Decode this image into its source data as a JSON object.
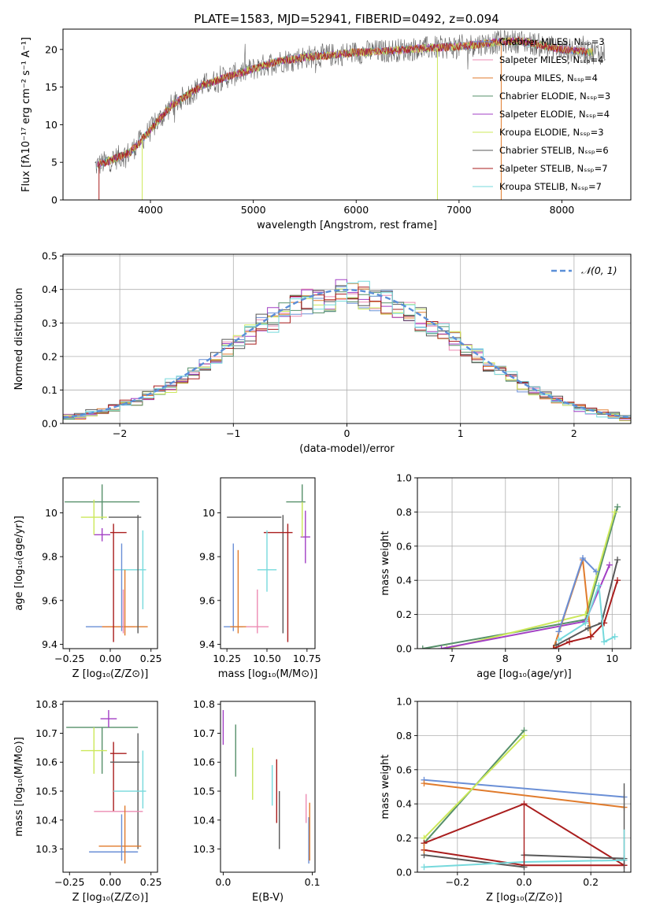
{
  "figure": {
    "title": "PLATE=1583, MJD=52941, FIBERID=0492, z=0.094"
  },
  "series_colors": [
    "#6a8fd6",
    "#ec8bb3",
    "#e07b2c",
    "#56906a",
    "#a23fc4",
    "#cce85a",
    "#585858",
    "#a91d1d",
    "#76d9dc"
  ],
  "chart_data": [
    {
      "id": "spectrum",
      "type": "line",
      "title": "PLATE=1583, MJD=52941, FIBERID=0492, z=0.094",
      "xlabel": "wavelength [Angstrom, rest frame]",
      "ylabel": "Flux [fλ10⁻¹⁷ erg cm⁻² s⁻¹ A⁻¹]",
      "xlim": [
        3150,
        8670
      ],
      "ylim": [
        0,
        22.7
      ],
      "xticks": [
        4000,
        5000,
        6000,
        7000,
        8000
      ],
      "yticks": [
        0,
        5,
        10,
        15,
        20
      ],
      "grid": false,
      "legend_position": "top-right",
      "legend": [
        "Chabrier MILES, Nₛₛₚ=3",
        "Salpeter MILES, Nₛₛₚ=4",
        "Kroupa MILES, Nₛₛₚ=4",
        "Chabrier ELODIE, Nₛₛₚ=3",
        "Salpeter ELODIE, Nₛₛₚ=4",
        "Kroupa ELODIE, Nₛₛₚ=3",
        "Chabrier STELIB, Nₛₛₚ=6",
        "Salpeter STELIB, Nₛₛₚ=7",
        "Kroupa STELIB, Nₛₛₚ=7"
      ],
      "legend_color_index": [
        0,
        1,
        2,
        3,
        4,
        5,
        6,
        7,
        8
      ],
      "continuum": {
        "x": [
          3460,
          3600,
          3800,
          4000,
          4200,
          4500,
          4800,
          5000,
          5200,
          5500,
          5800,
          6000,
          6300,
          6600,
          7000,
          7400,
          7600,
          8000,
          8400
        ],
        "y": [
          4.5,
          5.2,
          6.3,
          9.3,
          12.5,
          15.2,
          16.6,
          17.4,
          18.3,
          19.0,
          19.3,
          19.6,
          19.8,
          20.1,
          20.4,
          21.0,
          21.1,
          20.0,
          19.5
        ]
      },
      "dips": [
        {
          "x": 3500,
          "to": 0
        },
        {
          "x": 3920,
          "to": 0
        },
        {
          "x": 6790,
          "to": 0
        },
        {
          "x": 7410,
          "to": 0
        }
      ]
    },
    {
      "id": "residuals",
      "type": "line",
      "xlabel": "(data-model)/error",
      "ylabel": "Normed distribution",
      "xlim": [
        -2.5,
        2.5
      ],
      "ylim": [
        0,
        0.505
      ],
      "xticks": [
        -2,
        -1,
        0,
        1,
        2
      ],
      "xtick_labels": [
        "−2",
        "−1",
        "0",
        "1",
        "2"
      ],
      "yticks": [
        0,
        0.1,
        0.2,
        0.3,
        0.4,
        0.5
      ],
      "grid": true,
      "legend_position": "top-right",
      "legend": [
        "𝒩(0, 1)"
      ],
      "reference": {
        "type": "gaussian",
        "mean": 0,
        "sigma": 1
      },
      "histogram_bins": 50,
      "histogram_count": 9
    },
    {
      "id": "age-vs-z",
      "type": "scatter",
      "xlabel": "Z [log₁₀(Z/Z⊙)]",
      "ylabel": "age  [log₁₀(age/yr)]",
      "xlim": [
        -0.29,
        0.29
      ],
      "ylim": [
        9.38,
        10.16
      ],
      "xticks": [
        -0.25,
        0,
        0.25
      ],
      "xtick_labels": [
        "−0.25",
        "0.00",
        "0.25"
      ],
      "yticks": [
        9.4,
        9.6,
        9.8,
        10.0
      ],
      "grid": false,
      "points": [
        {
          "c": 0,
          "x": 0.0,
          "y": 9.48,
          "xerr": 0.15,
          "yerr": 0.0
        },
        {
          "c": 1,
          "x": 0.05,
          "y": 9.48,
          "xerr": 0.1,
          "yerr": 0.0
        },
        {
          "c": 2,
          "x": 0.09,
          "y": 9.48,
          "xerr": 0.14,
          "yerr": 0.0
        },
        {
          "c": 3,
          "x": -0.05,
          "y": 10.05,
          "xerr": 0.23,
          "yerr": 0.08
        },
        {
          "c": 4,
          "x": -0.05,
          "y": 9.9,
          "xerr": 0.05,
          "yerr": 0.03
        },
        {
          "c": 5,
          "x": -0.1,
          "y": 9.98,
          "xerr": 0.08,
          "yerr": 0.08
        },
        {
          "c": 6,
          "x": 0.09,
          "y": 9.98,
          "xerr": 0.1,
          "yerr": 0.0
        },
        {
          "c": 7,
          "x": 0.05,
          "y": 9.91,
          "xerr": 0.05,
          "yerr": 0.0
        },
        {
          "c": 8,
          "x": 0.12,
          "y": 9.74,
          "xerr": 0.1,
          "yerr": 0.0
        },
        {
          "c": 0,
          "x": 0.07,
          "y": 9.66,
          "xerr": 0.0,
          "yerr": 0.2
        },
        {
          "c": 7,
          "x": 0.02,
          "y": 9.68,
          "xerr": 0.0,
          "yerr": 0.27
        },
        {
          "c": 6,
          "x": 0.17,
          "y": 9.72,
          "xerr": 0.0,
          "yerr": 0.27
        },
        {
          "c": 8,
          "x": 0.2,
          "y": 9.74,
          "xerr": 0.0,
          "yerr": 0.18
        },
        {
          "c": 1,
          "x": 0.08,
          "y": 9.55,
          "xerr": 0.0,
          "yerr": 0.1
        },
        {
          "c": 2,
          "x": 0.09,
          "y": 9.59,
          "xerr": 0.0,
          "yerr": 0.15
        }
      ]
    },
    {
      "id": "age-vs-mass",
      "type": "scatter",
      "xlabel": "mass [log₁₀(M/M⊙)]",
      "xlim": [
        10.21,
        10.8
      ],
      "ylim": [
        9.38,
        10.16
      ],
      "xticks": [
        10.25,
        10.5,
        10.75
      ],
      "xtick_labels": [
        "10.25",
        "10.50",
        "10.75"
      ],
      "yticks": [
        9.4,
        9.6,
        9.8,
        10.0
      ],
      "grid": false,
      "points": [
        {
          "c": 0,
          "x": 10.29,
          "y": 9.48,
          "xerr": 0.06,
          "yerr": 0.0
        },
        {
          "c": 0,
          "x": 10.29,
          "y": 9.66,
          "xerr": 0.0,
          "yerr": 0.2
        },
        {
          "c": 2,
          "x": 10.32,
          "y": 9.48,
          "xerr": 0.05,
          "yerr": 0.0
        },
        {
          "c": 2,
          "x": 10.32,
          "y": 9.64,
          "xerr": 0.0,
          "yerr": 0.19
        },
        {
          "c": 1,
          "x": 10.44,
          "y": 9.48,
          "xerr": 0.07,
          "yerr": 0.0
        },
        {
          "c": 1,
          "x": 10.44,
          "y": 9.55,
          "xerr": 0.0,
          "yerr": 0.1
        },
        {
          "c": 6,
          "x": 10.42,
          "y": 9.98,
          "xerr": 0.17,
          "yerr": 0.0
        },
        {
          "c": 6,
          "x": 10.6,
          "y": 9.72,
          "xerr": 0.0,
          "yerr": 0.27
        },
        {
          "c": 7,
          "x": 10.57,
          "y": 9.91,
          "xerr": 0.09,
          "yerr": 0.0
        },
        {
          "c": 7,
          "x": 10.63,
          "y": 9.68,
          "xerr": 0.0,
          "yerr": 0.27
        },
        {
          "c": 8,
          "x": 10.5,
          "y": 9.74,
          "xerr": 0.06,
          "yerr": 0.0
        },
        {
          "c": 8,
          "x": 10.5,
          "y": 9.78,
          "xerr": 0.0,
          "yerr": 0.14
        },
        {
          "c": 3,
          "x": 10.68,
          "y": 10.05,
          "xerr": 0.06,
          "yerr": 0.0
        },
        {
          "c": 3,
          "x": 10.72,
          "y": 10.05,
          "xerr": 0.0,
          "yerr": 0.08
        },
        {
          "c": 4,
          "x": 10.74,
          "y": 9.89,
          "xerr": 0.03,
          "yerr": 0.12
        },
        {
          "c": 5,
          "x": 10.72,
          "y": 9.97,
          "xerr": 0.0,
          "yerr": 0.08
        }
      ]
    },
    {
      "id": "weight-vs-age",
      "type": "line",
      "xlabel": "age  [log₁₀(age/yr)]",
      "ylabel": "mass weight",
      "xlim": [
        6.35,
        10.35
      ],
      "ylim": [
        0,
        1.0
      ],
      "xticks": [
        7,
        8,
        9,
        10
      ],
      "yticks": [
        0,
        0.2,
        0.4,
        0.6,
        0.8,
        1.0
      ],
      "grid": true,
      "series": [
        {
          "c": 3,
          "x": [
            6.45,
            9.5,
            10.1
          ],
          "y": [
            0.0,
            0.17,
            0.83
          ]
        },
        {
          "c": 5,
          "x": [
            6.9,
            9.5,
            10.05
          ],
          "y": [
            0.0,
            0.2,
            0.8
          ]
        },
        {
          "c": 4,
          "x": [
            6.8,
            9.5,
            9.95
          ],
          "y": [
            0.0,
            0.16,
            0.49
          ]
        },
        {
          "c": 2,
          "x": [
            8.9,
            9.45,
            9.6
          ],
          "y": [
            0.0,
            0.52,
            0.07
          ]
        },
        {
          "c": 0,
          "x": [
            9.0,
            9.45,
            9.7
          ],
          "y": [
            0.1,
            0.53,
            0.45
          ]
        },
        {
          "c": 6,
          "x": [
            8.95,
            9.55,
            9.8,
            10.1
          ],
          "y": [
            0.02,
            0.12,
            0.15,
            0.52
          ]
        },
        {
          "c": 7,
          "x": [
            8.9,
            9.2,
            9.6,
            9.85,
            10.1
          ],
          "y": [
            0.0,
            0.04,
            0.07,
            0.15,
            0.4
          ]
        },
        {
          "c": 8,
          "x": [
            9.0,
            9.5,
            9.75,
            9.85,
            10.05
          ],
          "y": [
            0.05,
            0.15,
            0.37,
            0.04,
            0.07
          ]
        }
      ]
    },
    {
      "id": "mass-vs-z",
      "type": "scatter",
      "xlabel": "Z [log₁₀(Z/Z⊙)]",
      "ylabel": "mass [log₁₀(M/M⊙)]",
      "xlim": [
        -0.29,
        0.29
      ],
      "ylim": [
        10.22,
        10.81
      ],
      "xticks": [
        -0.25,
        0,
        0.25
      ],
      "xtick_labels": [
        "−0.25",
        "0.00",
        "0.25"
      ],
      "yticks": [
        10.3,
        10.4,
        10.5,
        10.6,
        10.7,
        10.8
      ],
      "grid": false,
      "points": [
        {
          "c": 3,
          "x": -0.05,
          "y": 10.72,
          "xerr": 0.22,
          "yerr": 0.0
        },
        {
          "c": 3,
          "x": -0.05,
          "y": 10.64,
          "xerr": 0.0,
          "yerr": 0.08
        },
        {
          "c": 4,
          "x": -0.01,
          "y": 10.75,
          "xerr": 0.05,
          "yerr": 0.03
        },
        {
          "c": 5,
          "x": -0.1,
          "y": 10.64,
          "xerr": 0.08,
          "yerr": 0.08
        },
        {
          "c": 7,
          "x": 0.05,
          "y": 10.63,
          "xerr": 0.05,
          "yerr": 0.0
        },
        {
          "c": 7,
          "x": 0.02,
          "y": 10.55,
          "xerr": 0.0,
          "yerr": 0.12
        },
        {
          "c": 6,
          "x": 0.09,
          "y": 10.6,
          "xerr": 0.09,
          "yerr": 0.0
        },
        {
          "c": 6,
          "x": 0.17,
          "y": 10.5,
          "xerr": 0.0,
          "yerr": 0.2
        },
        {
          "c": 8,
          "x": 0.12,
          "y": 10.5,
          "xerr": 0.1,
          "yerr": 0.0
        },
        {
          "c": 8,
          "x": 0.2,
          "y": 10.54,
          "xerr": 0.0,
          "yerr": 0.1
        },
        {
          "c": 1,
          "x": 0.05,
          "y": 10.43,
          "xerr": 0.15,
          "yerr": 0.0
        },
        {
          "c": 2,
          "x": 0.06,
          "y": 10.31,
          "xerr": 0.13,
          "yerr": 0.0
        },
        {
          "c": 0,
          "x": 0.02,
          "y": 10.29,
          "xerr": 0.15,
          "yerr": 0.0
        },
        {
          "c": 0,
          "x": 0.07,
          "y": 10.34,
          "xerr": 0.0,
          "yerr": 0.08
        },
        {
          "c": 2,
          "x": 0.09,
          "y": 10.35,
          "xerr": 0.0,
          "yerr": 0.1
        }
      ]
    },
    {
      "id": "mass-vs-ebv",
      "type": "scatter",
      "xlabel": "E(B-V)",
      "xlim": [
        -0.003,
        0.103
      ],
      "ylim": [
        10.22,
        10.81
      ],
      "xticks": [
        0,
        0.1
      ],
      "xtick_labels": [
        "0.0",
        "0.1"
      ],
      "yticks": [
        10.3,
        10.4,
        10.5,
        10.6,
        10.7,
        10.8
      ],
      "grid": false,
      "points": [
        {
          "c": 4,
          "x": 0.0,
          "y": 10.72,
          "xerr": 0.0,
          "yerr": 0.06
        },
        {
          "c": 3,
          "x": 0.014,
          "y": 10.64,
          "xerr": 0.0,
          "yerr": 0.09
        },
        {
          "c": 5,
          "x": 0.033,
          "y": 10.56,
          "xerr": 0.0,
          "yerr": 0.09
        },
        {
          "c": 8,
          "x": 0.055,
          "y": 10.52,
          "xerr": 0.0,
          "yerr": 0.07
        },
        {
          "c": 7,
          "x": 0.06,
          "y": 10.5,
          "xerr": 0.0,
          "yerr": 0.11
        },
        {
          "c": 6,
          "x": 0.063,
          "y": 10.4,
          "xerr": 0.0,
          "yerr": 0.1
        },
        {
          "c": 1,
          "x": 0.093,
          "y": 10.44,
          "xerr": 0.0,
          "yerr": 0.05
        },
        {
          "c": 0,
          "x": 0.096,
          "y": 10.33,
          "xerr": 0.0,
          "yerr": 0.08
        },
        {
          "c": 2,
          "x": 0.097,
          "y": 10.36,
          "xerr": 0.0,
          "yerr": 0.1
        }
      ]
    },
    {
      "id": "weight-vs-z",
      "type": "line",
      "xlabel": "Z [log₁₀(Z/Z⊙)]",
      "ylabel": "mass weight",
      "xlim": [
        -0.32,
        0.32
      ],
      "ylim": [
        0,
        1.0
      ],
      "xticks": [
        -0.2,
        0,
        0.2
      ],
      "xtick_labels": [
        "−0.2",
        "0.0",
        "0.2"
      ],
      "yticks": [
        0,
        0.2,
        0.4,
        0.6,
        0.8,
        1.0
      ],
      "grid": true,
      "series": [
        {
          "c": 0,
          "x": [
            -0.3,
            0.3
          ],
          "y": [
            0.54,
            0.44
          ]
        },
        {
          "c": 2,
          "x": [
            -0.3,
            0.3
          ],
          "y": [
            0.52,
            0.38
          ]
        },
        {
          "c": 3,
          "x": [
            -0.3,
            0.0
          ],
          "y": [
            0.17,
            0.83
          ]
        },
        {
          "c": 5,
          "x": [
            -0.3,
            0.0
          ],
          "y": [
            0.2,
            0.8
          ]
        },
        {
          "c": 7,
          "x": [
            -0.3,
            0.0,
            0.3
          ],
          "y": [
            0.13,
            0.04,
            0.04
          ]
        },
        {
          "c": 7,
          "x": [
            -0.3,
            0.0,
            0.3
          ],
          "y": [
            0.17,
            0.4,
            0.04
          ]
        },
        {
          "c": 6,
          "x": [
            -0.3,
            0.0
          ],
          "y": [
            0.1,
            0.03
          ]
        },
        {
          "c": 6,
          "x": [
            0.0,
            0.3
          ],
          "y": [
            0.1,
            0.08
          ]
        },
        {
          "c": 8,
          "x": [
            -0.3,
            0.0,
            0.3
          ],
          "y": [
            0.03,
            0.06,
            0.07
          ]
        }
      ],
      "vlines": [
        {
          "c": 7,
          "x": 0.0,
          "y": [
            0.04,
            0.4
          ]
        },
        {
          "c": 6,
          "x": 0.3,
          "y": [
            0.0,
            0.52
          ]
        },
        {
          "c": 8,
          "x": 0.3,
          "y": [
            0.07,
            0.25
          ]
        },
        {
          "c": 2,
          "x": -0.3,
          "y": [
            0.11,
            0.17
          ]
        }
      ]
    }
  ]
}
